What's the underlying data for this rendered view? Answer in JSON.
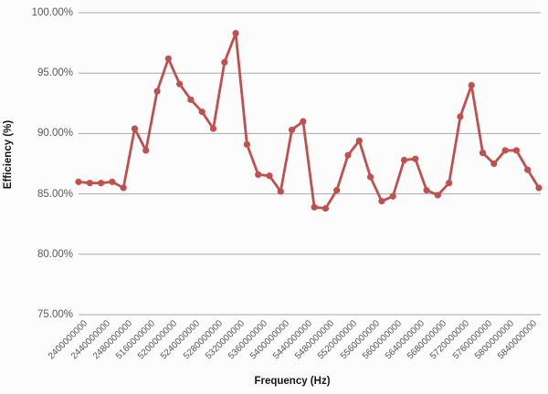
{
  "chart_data": {
    "type": "line",
    "title": "",
    "xlabel": "Frequency (Hz)",
    "ylabel": "Efficiency (%)",
    "ylim": [
      75,
      100
    ],
    "grid": "horizontal-only",
    "legend": "none",
    "ytick_labels": [
      "100.00%",
      "95.00%",
      "90.00%",
      "85.00%",
      "80.00%",
      "75.00%"
    ],
    "ytick_values": [
      100,
      95,
      90,
      85,
      80,
      75
    ],
    "categories": [
      "2400000000",
      "2440000000",
      "2480000000",
      "5160000000",
      "5200000000",
      "5240000000",
      "5280000000",
      "5320000000",
      "5360000000",
      "5400000000",
      "5440000000",
      "5480000000",
      "5520000000",
      "5560000000",
      "5600000000",
      "5640000000",
      "5680000000",
      "5720000000",
      "5760000000",
      "5800000000",
      "5840000000"
    ],
    "category_label_every_n_points": 2,
    "series": [
      {
        "name": "Efficiency",
        "color": "#c0504d",
        "marker": "circle",
        "values": [
          86.0,
          85.9,
          85.9,
          86.0,
          85.5,
          90.4,
          88.6,
          93.5,
          96.2,
          94.1,
          92.8,
          91.8,
          90.4,
          95.9,
          98.3,
          89.1,
          86.6,
          86.5,
          85.2,
          90.3,
          91.0,
          83.9,
          83.8,
          85.3,
          88.2,
          89.4,
          86.4,
          84.4,
          84.8,
          87.8,
          87.9,
          85.3,
          84.9,
          85.9,
          91.4,
          94.0,
          88.4,
          87.5,
          88.6,
          88.6,
          87.0,
          85.5
        ]
      }
    ],
    "colors": {
      "line": "#c0504d",
      "grid": "#a8a8a8",
      "tick_text": "#595959",
      "axis_title_text": "#151515",
      "background": "#fcfcfc"
    }
  }
}
